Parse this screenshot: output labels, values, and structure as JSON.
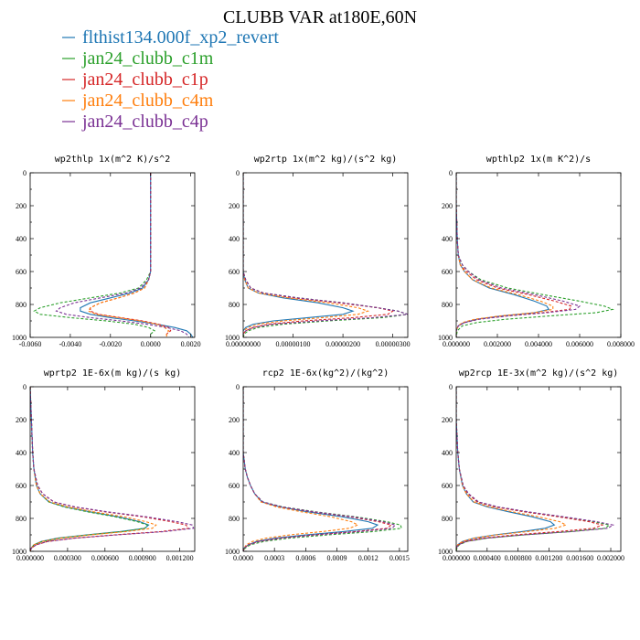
{
  "figure": {
    "title": "CLUBB VAR at180E,60N"
  },
  "legend": [
    {
      "label": "flthist134.000f_xp2_revert",
      "color": "#1f77b4",
      "dash": "solid"
    },
    {
      "label": "jan24_clubb_c1m",
      "color": "#2ca02c",
      "dash": "dashed"
    },
    {
      "label": "jan24_clubb_c1p",
      "color": "#d62728",
      "dash": "dashed"
    },
    {
      "label": "jan24_clubb_c4m",
      "color": "#ff7f0e",
      "dash": "dashed"
    },
    {
      "label": "jan24_clubb_c4p",
      "color": "#7b3294",
      "dash": "dashed"
    }
  ],
  "chart_data": [
    {
      "type": "line",
      "title": "wp2thlp  1x(m^2 K)/s^2",
      "xlim": [
        -0.006,
        0.0022
      ],
      "ylim": [
        0,
        1000
      ],
      "xticks": [
        "-0.0060",
        "-0.0040",
        "-0.0020",
        "0.0000",
        "0.0020"
      ],
      "xtick_values": [
        -0.006,
        -0.004,
        -0.002,
        0.0,
        0.002
      ],
      "yticks": [
        "0",
        "200",
        "400",
        "600",
        "800",
        "1000"
      ],
      "y": [
        0,
        200,
        400,
        600,
        650,
        700,
        730,
        760,
        790,
        820,
        840,
        860,
        880,
        900,
        920,
        940,
        960,
        980,
        1000
      ],
      "series": [
        {
          "name": "flthist134.000f_xp2_revert",
          "values": [
            0.0,
            0.0,
            0.0,
            0.0,
            -0.0001,
            -0.0004,
            -0.001,
            -0.002,
            -0.003,
            -0.0035,
            -0.0035,
            -0.003,
            -0.002,
            -0.0008,
            0.0003,
            0.0012,
            0.0018,
            0.002,
            0.0021
          ]
        },
        {
          "name": "jan24_clubb_c1m",
          "values": [
            0.0,
            0.0,
            0.0,
            0.0,
            -0.0002,
            -0.0006,
            -0.0015,
            -0.003,
            -0.0045,
            -0.0055,
            -0.0058,
            -0.0055,
            -0.004,
            -0.0022,
            -0.0008,
            -0.0001,
            0.0002,
            0.0,
            0.0
          ]
        },
        {
          "name": "jan24_clubb_c1p",
          "values": [
            0.0,
            0.0,
            0.0,
            0.0,
            -0.0001,
            -0.0003,
            -0.0008,
            -0.0016,
            -0.0025,
            -0.003,
            -0.003,
            -0.0026,
            -0.0015,
            -0.0004,
            0.0004,
            0.0009,
            0.001,
            0.0008,
            0.0008
          ]
        },
        {
          "name": "jan24_clubb_c4m",
          "values": [
            0.0,
            0.0,
            0.0,
            0.0,
            -0.0001,
            -0.0003,
            -0.0008,
            -0.0016,
            -0.0025,
            -0.003,
            -0.0031,
            -0.0027,
            -0.0016,
            -0.0005,
            0.0003,
            0.0007,
            0.0009,
            0.0008,
            0.0008
          ]
        },
        {
          "name": "jan24_clubb_c4p",
          "values": [
            0.0,
            0.0,
            0.0,
            0.0,
            -0.0001,
            -0.0005,
            -0.0012,
            -0.0025,
            -0.0038,
            -0.0045,
            -0.0047,
            -0.0042,
            -0.003,
            -0.0015,
            -0.0002,
            0.0008,
            0.0015,
            0.0018,
            0.0019
          ]
        }
      ]
    },
    {
      "type": "line",
      "title": "wp2rtp  1x(m^2 kg)/(s^2 kg)",
      "xlim": [
        0,
        3.3e-06
      ],
      "ylim": [
        0,
        1000
      ],
      "xticks": [
        "0.00000000",
        "0.00000100",
        "0.00000200",
        "0.00000300"
      ],
      "xtick_values": [
        0,
        1e-06,
        2e-06,
        3e-06
      ],
      "yticks": [
        "0",
        "200",
        "400",
        "600",
        "800",
        "1000"
      ],
      "y": [
        0,
        200,
        400,
        600,
        650,
        700,
        730,
        760,
        790,
        820,
        840,
        860,
        880,
        900,
        920,
        940,
        960,
        980,
        1000
      ],
      "series": [
        {
          "name": "flthist134.000f_xp2_revert",
          "values": [
            0,
            0,
            0,
            0,
            3e-08,
            1e-07,
            3e-07,
            8e-07,
            1.5e-06,
            2e-06,
            2.2e-06,
            2e-06,
            1.3e-06,
            6e-07,
            2e-07,
            5e-08,
            0,
            0,
            0
          ]
        },
        {
          "name": "jan24_clubb_c1m",
          "values": [
            0,
            0,
            0,
            0,
            5e-08,
            1.5e-07,
            4e-07,
            1.1e-06,
            2e-06,
            2.7e-06,
            3.1e-06,
            3.3e-06,
            2.8e-06,
            1.7e-06,
            8e-07,
            3e-07,
            1e-07,
            2e-08,
            0
          ]
        },
        {
          "name": "jan24_clubb_c1p",
          "values": [
            0,
            0,
            0,
            0,
            5e-08,
            1.5e-07,
            4e-07,
            1e-06,
            1.9e-06,
            2.7e-06,
            3e-06,
            2.9e-06,
            2.2e-06,
            1.2e-06,
            5e-07,
            2e-07,
            5e-08,
            0,
            0
          ]
        },
        {
          "name": "jan24_clubb_c4m",
          "values": [
            0,
            0,
            0,
            0,
            3e-08,
            1e-07,
            3e-07,
            9e-07,
            1.7e-06,
            2.3e-06,
            2.5e-06,
            2.3e-06,
            1.6e-06,
            8e-07,
            3e-07,
            1e-07,
            0,
            0,
            0
          ]
        },
        {
          "name": "jan24_clubb_c4p",
          "values": [
            0,
            0,
            0,
            0,
            5e-08,
            1.5e-07,
            4e-07,
            1.1e-06,
            2e-06,
            2.7e-06,
            3.1e-06,
            3.3e-06,
            2.6e-06,
            1.5e-06,
            6e-07,
            2e-07,
            5e-08,
            0,
            0
          ]
        }
      ]
    },
    {
      "type": "line",
      "title": "wpthlp2  1x(m K^2)/s",
      "xlim": [
        0,
        0.008
      ],
      "ylim": [
        0,
        1000
      ],
      "xticks": [
        "0.000000",
        "0.002000",
        "0.004000",
        "0.006000",
        "0.008000"
      ],
      "xtick_values": [
        0,
        0.002,
        0.004,
        0.006,
        0.008
      ],
      "yticks": [
        "0",
        "200",
        "400",
        "600",
        "800",
        "1000"
      ],
      "y": [
        0,
        200,
        400,
        500,
        560,
        600,
        650,
        700,
        740,
        780,
        810,
        830,
        850,
        870,
        890,
        910,
        930,
        960,
        1000
      ],
      "series": [
        {
          "name": "flthist134.000f_xp2_revert",
          "values": [
            0,
            0,
            5e-05,
            0.0001,
            0.0002,
            0.0004,
            0.0008,
            0.0016,
            0.0028,
            0.0038,
            0.0044,
            0.0045,
            0.0038,
            0.0022,
            0.001,
            0.0004,
            0.0001,
            0,
            0
          ]
        },
        {
          "name": "jan24_clubb_c1m",
          "values": [
            0,
            0,
            5e-05,
            0.0001,
            0.0003,
            0.0006,
            0.0012,
            0.0025,
            0.0042,
            0.006,
            0.0072,
            0.0076,
            0.0068,
            0.0045,
            0.0024,
            0.001,
            0.0003,
            5e-05,
            0
          ]
        },
        {
          "name": "jan24_clubb_c1p",
          "values": [
            0,
            0,
            5e-05,
            0.0001,
            0.0002,
            0.0005,
            0.001,
            0.002,
            0.0035,
            0.0048,
            0.0056,
            0.0055,
            0.0042,
            0.0024,
            0.0011,
            0.0004,
            0.0001,
            0,
            0
          ]
        },
        {
          "name": "jan24_clubb_c4m",
          "values": [
            0,
            0,
            5e-05,
            0.0001,
            0.0002,
            0.0004,
            0.0008,
            0.0017,
            0.003,
            0.0041,
            0.0047,
            0.0047,
            0.0038,
            0.0021,
            0.0009,
            0.0003,
            0.0001,
            0,
            0
          ]
        },
        {
          "name": "jan24_clubb_c4p",
          "values": [
            0,
            0,
            5e-05,
            0.0001,
            0.0003,
            0.0006,
            0.0011,
            0.0022,
            0.0038,
            0.0052,
            0.006,
            0.0058,
            0.0044,
            0.0025,
            0.0011,
            0.0004,
            0.0001,
            0,
            0
          ]
        }
      ]
    },
    {
      "type": "line",
      "title": "wprtp2  1E-6x(m kg)/(s kg)",
      "xlim": [
        0,
        0.00132
      ],
      "ylim": [
        0,
        1000
      ],
      "xticks": [
        "0.000000",
        "0.000300",
        "0.000600",
        "0.000900",
        "0.001200"
      ],
      "xtick_values": [
        0,
        0.0003,
        0.0006,
        0.0009,
        0.0012
      ],
      "yticks": [
        "0",
        "200",
        "400",
        "600",
        "800",
        "1000"
      ],
      "y": [
        0,
        200,
        400,
        500,
        600,
        650,
        700,
        730,
        760,
        790,
        820,
        840,
        860,
        880,
        900,
        920,
        940,
        960,
        980,
        1000
      ],
      "series": [
        {
          "name": "flthist134.000f_xp2_revert",
          "values": [
            0,
            1e-05,
            2e-05,
            3e-05,
            5e-05,
            8e-05,
            0.00015,
            0.00028,
            0.00048,
            0.0007,
            0.00088,
            0.00095,
            0.00092,
            0.00072,
            0.00045,
            0.00022,
            9e-05,
            3e-05,
            1e-05,
            0
          ]
        },
        {
          "name": "jan24_clubb_c1m",
          "values": [
            0,
            1e-05,
            2e-05,
            3e-05,
            5e-05,
            8e-05,
            0.00015,
            0.00027,
            0.00046,
            0.00068,
            0.00086,
            0.00094,
            0.00092,
            0.00074,
            0.00047,
            0.00024,
            0.0001,
            3e-05,
            1e-05,
            0
          ]
        },
        {
          "name": "jan24_clubb_c1p",
          "values": [
            0,
            1e-05,
            2e-05,
            3e-05,
            6e-05,
            0.0001,
            0.00019,
            0.00035,
            0.0006,
            0.0009,
            0.00113,
            0.00125,
            0.00127,
            0.00105,
            0.00068,
            0.00035,
            0.00014,
            5e-05,
            1e-05,
            0
          ]
        },
        {
          "name": "jan24_clubb_c4m",
          "values": [
            0,
            1e-05,
            2e-05,
            3e-05,
            5e-05,
            8e-05,
            0.00016,
            0.0003,
            0.00051,
            0.00075,
            0.00093,
            0.00101,
            0.00098,
            0.00077,
            0.00048,
            0.00024,
            0.0001,
            3e-05,
            1e-05,
            0
          ]
        },
        {
          "name": "jan24_clubb_c4p",
          "values": [
            0,
            1e-05,
            2e-05,
            3e-05,
            6e-05,
            0.0001,
            0.00019,
            0.00036,
            0.00062,
            0.00093,
            0.00118,
            0.0013,
            0.00131,
            0.00108,
            0.0007,
            0.00036,
            0.00014,
            5e-05,
            1e-05,
            0
          ]
        }
      ]
    },
    {
      "type": "line",
      "title": "rcp2  1E-6x(kg^2)/(kg^2)",
      "xlim": [
        0,
        0.00158
      ],
      "ylim": [
        0,
        1000
      ],
      "xticks": [
        "0.0000",
        "0.0003",
        "0.0006",
        "0.0009",
        "0.0012",
        "0.0015"
      ],
      "xtick_values": [
        0,
        0.0003,
        0.0006,
        0.0009,
        0.0012,
        0.0015
      ],
      "yticks": [
        "0",
        "200",
        "400",
        "600",
        "800",
        "1000"
      ],
      "y": [
        0,
        200,
        400,
        450,
        500,
        550,
        600,
        650,
        700,
        730,
        760,
        790,
        820,
        840,
        860,
        880,
        900,
        920,
        940,
        960,
        980,
        1000
      ],
      "series": [
        {
          "name": "flthist134.000f_xp2_revert",
          "values": [
            0,
            0,
            0,
            1e-05,
            2e-05,
            4e-05,
            7e-05,
            0.00011,
            0.00018,
            0.00035,
            0.00062,
            0.00095,
            0.0012,
            0.00129,
            0.00124,
            0.00096,
            0.0006,
            0.00031,
            0.00013,
            5e-05,
            1e-05,
            0
          ]
        },
        {
          "name": "jan24_clubb_c1m",
          "values": [
            0,
            0,
            0,
            1e-05,
            2e-05,
            4e-05,
            7e-05,
            0.00011,
            0.00019,
            0.00038,
            0.0007,
            0.00108,
            0.00138,
            0.00151,
            0.00152,
            0.00125,
            0.00082,
            0.00044,
            0.0002,
            7e-05,
            2e-05,
            0
          ]
        },
        {
          "name": "jan24_clubb_c1p",
          "values": [
            0,
            0,
            0,
            1e-05,
            2e-05,
            4e-05,
            7e-05,
            0.00011,
            0.00018,
            0.00036,
            0.00066,
            0.00102,
            0.0013,
            0.00142,
            0.00138,
            0.00108,
            0.00068,
            0.00035,
            0.00015,
            5e-05,
            1e-05,
            0
          ]
        },
        {
          "name": "jan24_clubb_c4m",
          "values": [
            0,
            0,
            0,
            1e-05,
            2e-05,
            4e-05,
            7e-05,
            0.00011,
            0.00017,
            0.00032,
            0.00056,
            0.00084,
            0.00104,
            0.0011,
            0.00102,
            0.00076,
            0.00045,
            0.00022,
            9e-05,
            3e-05,
            1e-05,
            0
          ]
        },
        {
          "name": "jan24_clubb_c4p",
          "values": [
            0,
            0,
            0,
            1e-05,
            2e-05,
            4e-05,
            7e-05,
            0.00011,
            0.00019,
            0.00037,
            0.00068,
            0.00105,
            0.00134,
            0.00146,
            0.00143,
            0.00112,
            0.0007,
            0.00036,
            0.00015,
            5e-05,
            1e-05,
            0
          ]
        }
      ]
    },
    {
      "type": "line",
      "title": "wp2rcp  1E-3x(m^2 kg)/(s^2 kg)",
      "xlim": [
        0,
        0.00213
      ],
      "ylim": [
        0,
        1000
      ],
      "xticks": [
        "0.000000",
        "0.000400",
        "0.000800",
        "0.001200",
        "0.001600",
        "0.002000"
      ],
      "xtick_values": [
        0,
        0.0004,
        0.0008,
        0.0012,
        0.0016,
        0.002
      ],
      "yticks": [
        "0",
        "200",
        "400",
        "600",
        "800",
        "1000"
      ],
      "y": [
        0,
        200,
        400,
        500,
        600,
        650,
        700,
        730,
        760,
        790,
        820,
        840,
        860,
        880,
        900,
        920,
        940,
        960,
        980,
        1000
      ],
      "series": [
        {
          "name": "flthist134.000f_xp2_revert",
          "values": [
            0,
            0,
            2e-05,
            4e-05,
            8e-05,
            0.00013,
            0.00022,
            0.0004,
            0.00068,
            0.00098,
            0.00122,
            0.00127,
            0.00115,
            0.00085,
            0.0005,
            0.00023,
            8e-05,
            2e-05,
            0,
            0
          ]
        },
        {
          "name": "jan24_clubb_c1m",
          "values": [
            0,
            0,
            2e-05,
            4e-05,
            9e-05,
            0.00015,
            0.00028,
            0.00052,
            0.0009,
            0.00135,
            0.00178,
            0.00198,
            0.00193,
            0.00148,
            0.00088,
            0.0004,
            0.00014,
            4e-05,
            1e-05,
            0
          ]
        },
        {
          "name": "jan24_clubb_c1p",
          "values": [
            0,
            0,
            2e-05,
            4e-05,
            9e-05,
            0.00015,
            0.00027,
            0.0005,
            0.00088,
            0.00132,
            0.00172,
            0.00189,
            0.00178,
            0.00132,
            0.00076,
            0.00033,
            0.00011,
            3e-05,
            0,
            0
          ]
        },
        {
          "name": "jan24_clubb_c4m",
          "values": [
            0,
            0,
            2e-05,
            4e-05,
            8e-05,
            0.00013,
            0.00023,
            0.00043,
            0.00073,
            0.00106,
            0.00134,
            0.00142,
            0.00128,
            0.00092,
            0.00052,
            0.00023,
            8e-05,
            2e-05,
            0,
            0
          ]
        },
        {
          "name": "jan24_clubb_c4p",
          "values": [
            0,
            0,
            2e-05,
            4e-05,
            9e-05,
            0.00016,
            0.00029,
            0.00054,
            0.00093,
            0.00139,
            0.00182,
            0.00203,
            0.00196,
            0.0015,
            0.00088,
            0.00039,
            0.00013,
            3e-05,
            0,
            0
          ]
        }
      ]
    }
  ]
}
